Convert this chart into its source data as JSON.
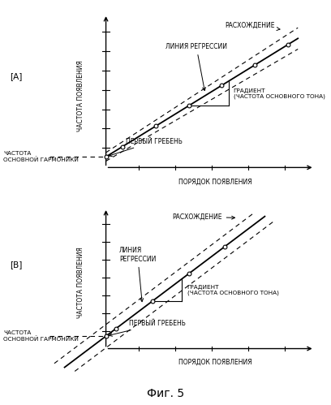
{
  "fig_title": "Фиг. 5",
  "panel_A_label": "[А]",
  "panel_B_label": "[В]",
  "ylabel": "ЧАСТОТА ПОЯВЛЕНИЯ",
  "xlabel": "ПОРЯДОК ПОЯВЛЕНИЯ",
  "label_regress_A": "ЛИНИЯ РЕГРЕССИИ",
  "label_diverge_A": "РАСХОЖДЕНИЕ",
  "label_gradient_A": "ГРАДИЕНТ\n(ЧАСТОТА ОСНОВНОГО ТОНА)",
  "label_first_crest_A": "ПЕРВЫЙ ГРЕБЕНЬ",
  "label_fundamental_A": "ЧАСТОТА\nОСНОВНОЙ ГАРМОНИКИ",
  "label_regress_B": "ЛИНИЯ\nРЕГРЕССИИ",
  "label_diverge_B": "РАСХОЖДЕНИЕ",
  "label_gradient_B": "ГРАДИЕНТ\n(ЧАСТОТА ОСНОВНОГО ТОНА)",
  "label_first_crest_B": "ПЕРВЫЙ ГРЕБЕНЬ",
  "label_fundamental_B": "ЧАСТОТА\nОСНОВНОЙ ГАРМОНИКИ",
  "background_color": "#ffffff",
  "line_color": "#000000"
}
